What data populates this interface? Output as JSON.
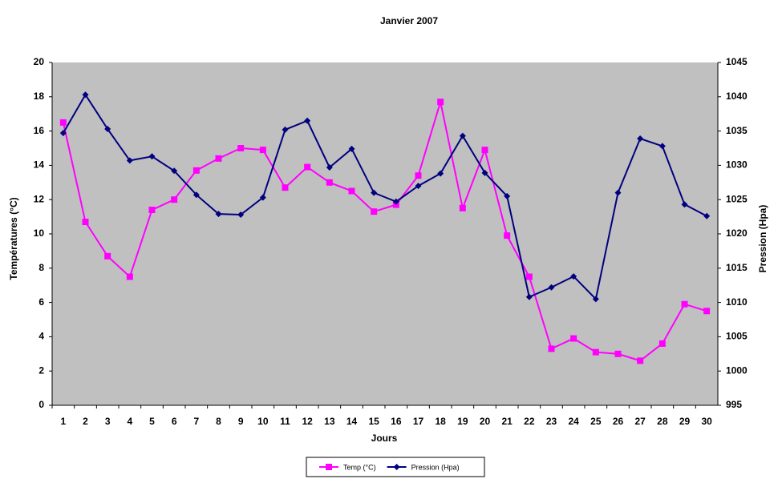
{
  "chart_data": {
    "type": "line",
    "title": "Janvier 2007",
    "x_label": "Jours",
    "y_label": "Températures (°C)",
    "y2_label": "Pression (Hpa)",
    "categories": [
      "1",
      "2",
      "3",
      "4",
      "5",
      "6",
      "7",
      "8",
      "9",
      "10",
      "11",
      "12",
      "13",
      "14",
      "15",
      "16",
      "17",
      "18",
      "19",
      "20",
      "21",
      "22",
      "23",
      "24",
      "25",
      "26",
      "27",
      "28",
      "29",
      "30"
    ],
    "series": [
      {
        "name": "Temp (°C)",
        "color": "#ff00ff",
        "marker": "square",
        "values": [
          16.5,
          10.7,
          8.7,
          7.5,
          11.4,
          12.0,
          13.7,
          14.4,
          15.0,
          14.9,
          12.7,
          13.9,
          13.0,
          12.5,
          11.3,
          11.7,
          13.4,
          17.7,
          11.5,
          14.9,
          9.9,
          7.5,
          3.3,
          3.9,
          3.1,
          3.0,
          2.6,
          3.6,
          5.9,
          5.5
        ]
      },
      {
        "name": "Pression (Hpa)",
        "color": "#000080",
        "marker": "diamond",
        "axis": "y2",
        "values": [
          1034.7,
          1040.3,
          1035.3,
          1030.7,
          1031.3,
          1029.2,
          1025.7,
          1022.9,
          1022.8,
          1025.3,
          1035.2,
          1036.5,
          1029.7,
          1032.4,
          1026.0,
          1024.7,
          1027.0,
          1028.8,
          1034.3,
          1028.9,
          1025.5,
          1010.8,
          1012.2,
          1013.8,
          1010.5,
          1026.0,
          1033.9,
          1032.8,
          1024.3,
          1022.6
        ]
      }
    ],
    "ylim": [
      0,
      20
    ],
    "yticks": [
      0,
      2,
      4,
      6,
      8,
      10,
      12,
      14,
      16,
      18,
      20
    ],
    "y2lim": [
      995,
      1045
    ],
    "y2ticks": [
      995,
      1000,
      1005,
      1010,
      1015,
      1020,
      1025,
      1030,
      1035,
      1040,
      1045
    ],
    "grid": false,
    "legend": "bottom",
    "plot_background": "#c0c0c0"
  }
}
